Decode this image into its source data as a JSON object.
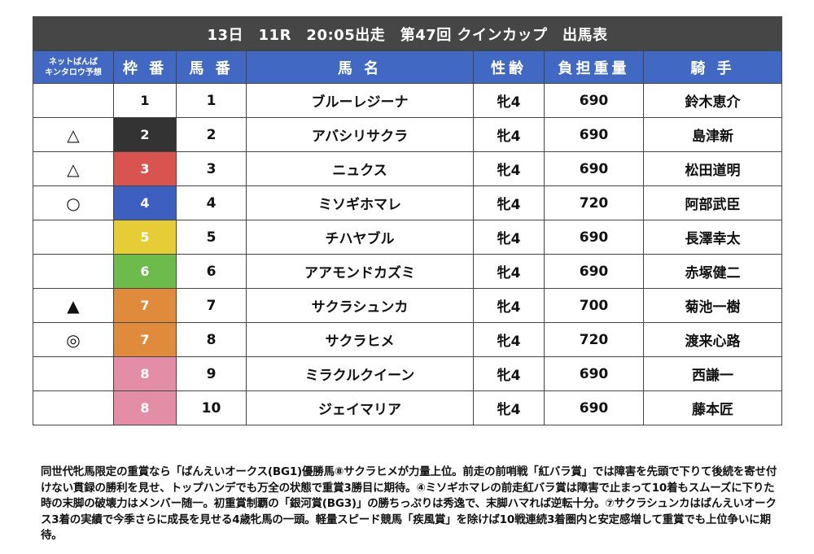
{
  "title": "13日　11R　20:05出走　第47回 クインカップ　出馬表",
  "headers": {
    "yoso_line1": "ネットばんば",
    "yoso_line2": "キンタロウ予想",
    "waku": "枠 番",
    "umaban": "馬 番",
    "name": "馬 名",
    "age": "性齢",
    "weight": "負担重量",
    "jockey": "騎 手"
  },
  "rows": [
    {
      "mark": "",
      "waku": "1",
      "waku_bg": "#ffffff",
      "waku_fg": "#111111",
      "umaban": "1",
      "name": "ブルーレジーナ",
      "age": "牝4",
      "weight": "690",
      "jockey": "鈴木恵介"
    },
    {
      "mark": "△",
      "waku": "2",
      "waku_bg": "#333333",
      "waku_fg": "#ffffff",
      "umaban": "2",
      "name": "アバシリサクラ",
      "age": "牝4",
      "weight": "690",
      "jockey": "島津新"
    },
    {
      "mark": "△",
      "waku": "3",
      "waku_bg": "#d9534f",
      "waku_fg": "#ffffff",
      "umaban": "3",
      "name": "ニュクス",
      "age": "牝4",
      "weight": "690",
      "jockey": "松田道明"
    },
    {
      "mark": "○",
      "waku": "4",
      "waku_bg": "#3d5fbf",
      "waku_fg": "#ffffff",
      "umaban": "4",
      "name": "ミソギホマレ",
      "age": "牝4",
      "weight": "720",
      "jockey": "阿部武臣"
    },
    {
      "mark": "",
      "waku": "5",
      "waku_bg": "#e6cc35",
      "waku_fg": "#ffffff",
      "umaban": "5",
      "name": "チハヤブル",
      "age": "牝4",
      "weight": "690",
      "jockey": "長澤幸太"
    },
    {
      "mark": "",
      "waku": "6",
      "waku_bg": "#6cbb4b",
      "waku_fg": "#ffffff",
      "umaban": "6",
      "name": "アアモンドカズミ",
      "age": "牝4",
      "weight": "690",
      "jockey": "赤塚健二"
    },
    {
      "mark": "▲",
      "waku": "7",
      "waku_bg": "#e08a3c",
      "waku_fg": "#ffffff",
      "umaban": "7",
      "name": "サクラシュンカ",
      "age": "牝4",
      "weight": "700",
      "jockey": "菊池一樹"
    },
    {
      "mark": "◎",
      "waku": "7",
      "waku_bg": "#e08a3c",
      "waku_fg": "#ffffff",
      "umaban": "8",
      "name": "サクラヒメ",
      "age": "牝4",
      "weight": "720",
      "jockey": "渡来心路"
    },
    {
      "mark": "",
      "waku": "8",
      "waku_bg": "#e38ea6",
      "waku_fg": "#ffffff",
      "umaban": "9",
      "name": "ミラクルクイーン",
      "age": "牝4",
      "weight": "690",
      "jockey": "西謙一"
    },
    {
      "mark": "",
      "waku": "8",
      "waku_bg": "#e38ea6",
      "waku_fg": "#ffffff",
      "umaban": "10",
      "name": "ジェイマリア",
      "age": "牝4",
      "weight": "690",
      "jockey": "藤本匠"
    }
  ],
  "commentary": "同世代牝馬限定の重賞なら「ばんえいオークス(BG1)優勝馬⑧サクラヒメが力量上位。前走の前哨戦「紅バラ賞」では障害を先頭で下りて後続を寄せ付けない貫録の勝利を見せ、トップハンデでも万全の状態で重賞3勝目に期待。④ミソギホマレの前走紅バラ賞は障害で止まって10着もスムーズに下りた時の末脚の破壊力はメンバー随一。初重賞制覇の「銀河賞(BG3)」の勝ちっぷりは秀逸で、末脚ハマれば逆転十分。⑦サクラシュンカはばんえいオークス3着の実績で今季さらに成長を見せる4歳牝馬の一頭。軽量スピード競馬「疾風賞」を除けば10戦連続3着圏内と安定感増して重賞でも上位争いに期待。"
}
